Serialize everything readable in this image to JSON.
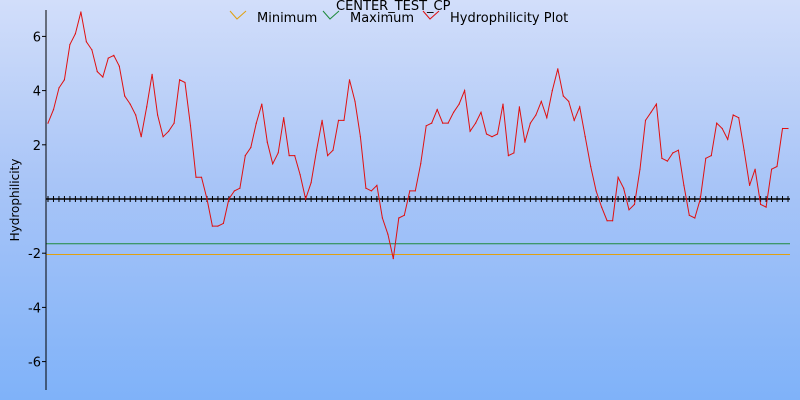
{
  "chart_data": {
    "type": "line",
    "title": "CENTER_TEST_CP",
    "ylabel": "Hydrophilicity",
    "xlabel": "",
    "ylim": [
      -7.1,
      7.0
    ],
    "yticks": [
      6,
      4,
      2,
      -2,
      -4,
      -6
    ],
    "ytick_labels": [
      "6",
      "4",
      "2",
      "-2",
      "-4",
      "-6"
    ],
    "zero_line": 0,
    "grid": false,
    "legend_position": "top",
    "series": [
      {
        "name": "Minimum",
        "color": "#e0a010",
        "y": -2.05,
        "kind": "constant"
      },
      {
        "name": "Maximum",
        "color": "#1e8a3c",
        "y": -1.65,
        "kind": "constant"
      },
      {
        "name": "Hydrophilicity Plot",
        "color": "#e01010",
        "kind": "profile",
        "values": [
          2.8,
          3.3,
          4.1,
          4.4,
          5.7,
          6.1,
          6.9,
          5.8,
          5.5,
          4.7,
          4.5,
          5.2,
          5.3,
          4.9,
          3.8,
          3.5,
          3.1,
          2.3,
          3.4,
          4.6,
          3.1,
          2.3,
          2.5,
          2.8,
          4.4,
          4.3,
          2.7,
          0.8,
          0.8,
          0.0,
          -1.0,
          -1.0,
          -0.9,
          0.0,
          0.3,
          0.4,
          1.6,
          1.9,
          2.8,
          3.5,
          2.1,
          1.3,
          1.7,
          3.0,
          1.6,
          1.6,
          0.9,
          0.0,
          0.6,
          1.8,
          2.9,
          1.6,
          1.8,
          2.9,
          2.9,
          4.4,
          3.6,
          2.3,
          0.4,
          0.3,
          0.5,
          -0.7,
          -1.3,
          -2.2,
          -0.7,
          -0.6,
          0.3,
          0.3,
          1.3,
          2.7,
          2.8,
          3.3,
          2.8,
          2.8,
          3.2,
          3.5,
          4.0,
          2.5,
          2.8,
          3.2,
          2.4,
          2.3,
          2.4,
          3.5,
          1.6,
          1.7,
          3.4,
          2.1,
          2.8,
          3.1,
          3.6,
          3.0,
          4.0,
          4.8,
          3.8,
          3.6,
          2.9,
          3.4,
          2.3,
          1.2,
          0.3,
          -0.3,
          -0.8,
          -0.8,
          0.8,
          0.4,
          -0.4,
          -0.2,
          1.1,
          2.9,
          3.2,
          3.5,
          1.5,
          1.4,
          1.7,
          1.8,
          0.5,
          -0.6,
          -0.7,
          0.0,
          1.5,
          1.6,
          2.8,
          2.6,
          2.2,
          3.1,
          3.0,
          1.8,
          0.5,
          1.1,
          -0.2,
          -0.3,
          1.1,
          1.2,
          2.6,
          2.6
        ]
      }
    ]
  }
}
